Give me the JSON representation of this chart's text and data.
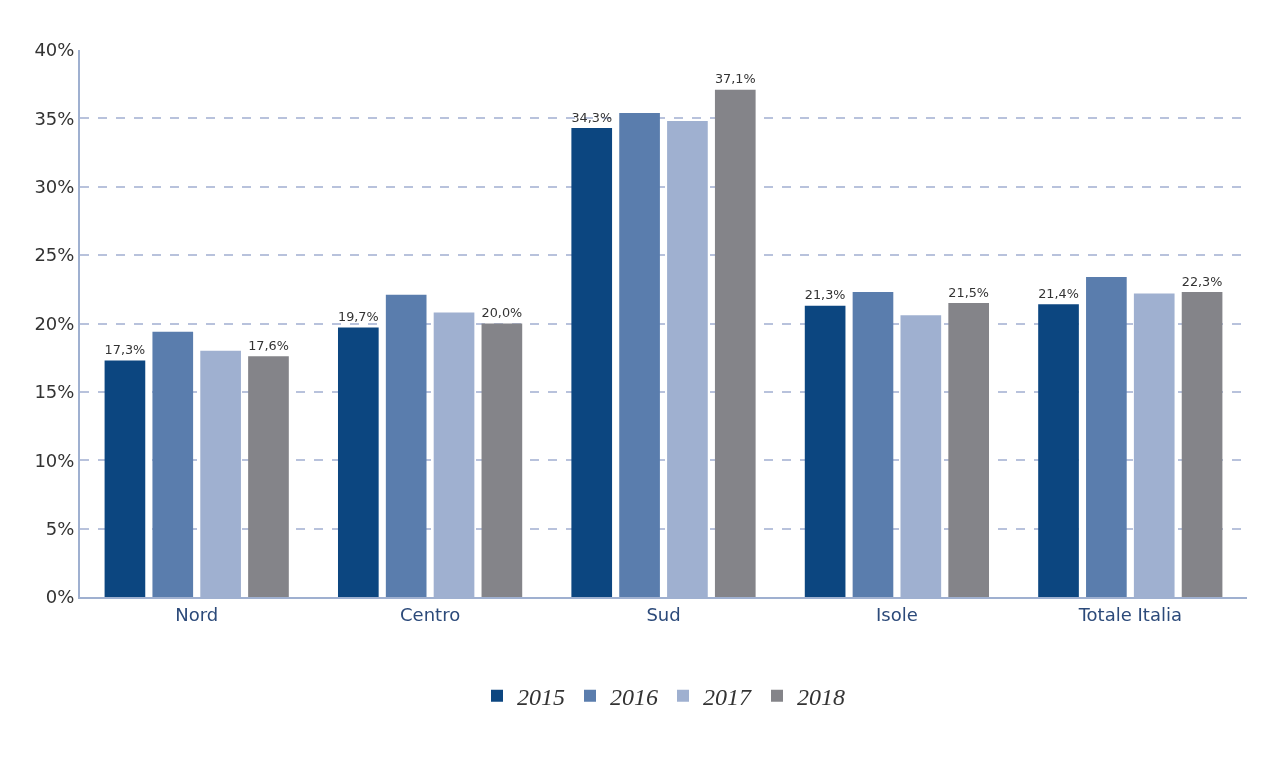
{
  "chart_data": {
    "type": "bar",
    "categories": [
      "Nord",
      "Centro",
      "Sud",
      "Isole",
      "Totale Italia"
    ],
    "series": [
      {
        "name": "2015",
        "color": "#0c4680",
        "values": [
          17.3,
          19.7,
          34.3,
          21.3,
          21.4
        ],
        "value_labels": [
          "17,3%",
          "19,7%",
          "34,3%",
          "21,3%",
          "21,4%"
        ]
      },
      {
        "name": "2016",
        "color": "#5a7dad",
        "values": [
          19.4,
          22.1,
          35.4,
          22.3,
          23.4
        ]
      },
      {
        "name": "2017",
        "color": "#9fb0d0",
        "values": [
          18.0,
          20.8,
          34.8,
          20.6,
          22.2
        ]
      },
      {
        "name": "2018",
        "color": "#848489",
        "values": [
          17.6,
          20.0,
          37.1,
          21.5,
          22.3
        ],
        "value_labels": [
          "17,6%",
          "20,0%",
          "37,1%",
          "21,5%",
          "22,3%"
        ]
      }
    ],
    "ylim": [
      0,
      40
    ],
    "yticks": [
      {
        "value": 0,
        "label": "0%"
      },
      {
        "value": 5,
        "label": "5%"
      },
      {
        "value": 10,
        "label": "10%"
      },
      {
        "value": 15,
        "label": "15%"
      },
      {
        "value": 20,
        "label": "20%"
      },
      {
        "value": 25,
        "label": "25%"
      },
      {
        "value": 30,
        "label": "30%"
      },
      {
        "value": 35,
        "label": "35%"
      },
      {
        "value": 40,
        "label": "40%"
      }
    ],
    "grid": "y",
    "legend": "bottom"
  }
}
